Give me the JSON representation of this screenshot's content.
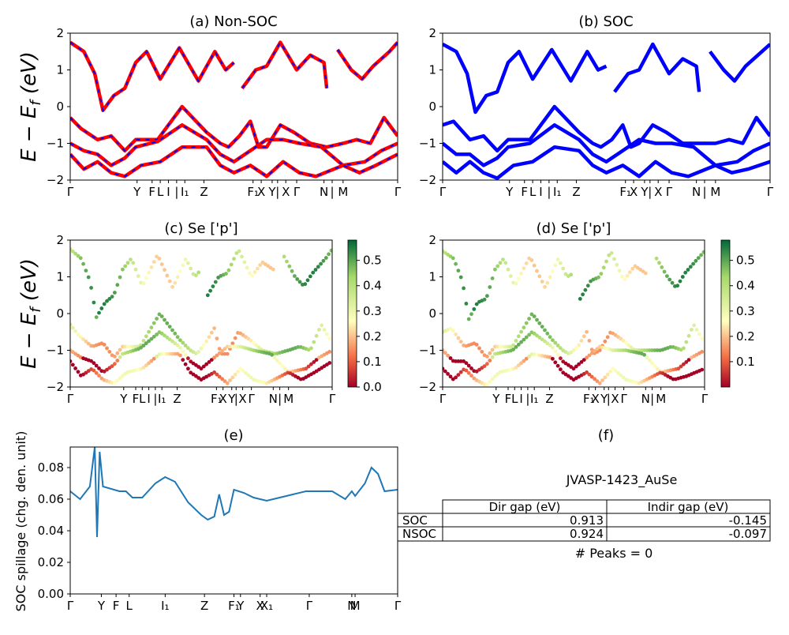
{
  "colors": {
    "red": "#ff0000",
    "blue": "#0000ff",
    "line": "#1f77b4"
  },
  "chart_data": [
    {
      "id": "a",
      "type": "line",
      "title": "(a) Non-SOC",
      "ylabel": "E − E_f (eV)",
      "ylim": [
        -2,
        2
      ],
      "yticks": [
        "2",
        "1",
        "0",
        "−1",
        "−2"
      ],
      "xticks": [
        "Γ",
        "Y",
        "F",
        "L",
        "I",
        "|",
        "I₁",
        "Z",
        "F₁",
        "X",
        "Y",
        "|",
        "X",
        "Γ",
        "N",
        "|",
        "M",
        "Γ"
      ],
      "series": [
        {
          "values": [
            [
              0,
              1.75
            ],
            [
              0.05,
              1.5
            ],
            [
              0.09,
              0.9
            ],
            [
              0.12,
              -0.1
            ],
            [
              0.16,
              0.3
            ],
            [
              0.2,
              0.5
            ],
            [
              0.24,
              1.2
            ],
            [
              0.28,
              1.5
            ],
            [
              0.33,
              0.75
            ],
            [
              0.4,
              1.6
            ],
            [
              0.47,
              0.7
            ],
            [
              0.53,
              1.5
            ],
            [
              0.57,
              1.0
            ],
            [
              0.6,
              1.2
            ]
          ]
        },
        {
          "values": [
            [
              0.63,
              0.5
            ],
            [
              0.68,
              1.0
            ],
            [
              0.72,
              1.1
            ],
            [
              0.77,
              1.75
            ],
            [
              0.83,
              1.0
            ],
            [
              0.88,
              1.4
            ],
            [
              0.93,
              1.2
            ],
            [
              0.94,
              0.5
            ]
          ]
        },
        {
          "values": [
            [
              0.98,
              1.55
            ],
            [
              1.03,
              1.0
            ],
            [
              1.07,
              0.75
            ],
            [
              1.11,
              1.1
            ],
            [
              1.17,
              1.5
            ],
            [
              1.2,
              1.75
            ]
          ]
        },
        {
          "values": [
            [
              0,
              -0.3
            ],
            [
              0.04,
              -0.6
            ],
            [
              0.1,
              -0.9
            ],
            [
              0.15,
              -0.8
            ],
            [
              0.2,
              -1.2
            ],
            [
              0.24,
              -0.9
            ],
            [
              0.32,
              -0.9
            ],
            [
              0.41,
              0.0
            ],
            [
              0.5,
              -0.7
            ],
            [
              0.55,
              -1.0
            ],
            [
              0.58,
              -1.1
            ],
            [
              0.62,
              -0.8
            ],
            [
              0.66,
              -0.4
            ],
            [
              0.69,
              -1.1
            ],
            [
              0.72,
              -1.1
            ],
            [
              0.77,
              -0.5
            ],
            [
              0.82,
              -0.7
            ],
            [
              0.88,
              -1.0
            ],
            [
              0.94,
              -1.1
            ],
            [
              1.0,
              -1.0
            ],
            [
              1.05,
              -0.9
            ],
            [
              1.1,
              -1.0
            ],
            [
              1.15,
              -0.3
            ],
            [
              1.2,
              -0.8
            ]
          ]
        },
        {
          "values": [
            [
              0,
              -1.0
            ],
            [
              0.05,
              -1.2
            ],
            [
              0.1,
              -1.3
            ],
            [
              0.15,
              -1.6
            ],
            [
              0.2,
              -1.4
            ],
            [
              0.24,
              -1.1
            ],
            [
              0.32,
              -0.95
            ],
            [
              0.41,
              -0.5
            ],
            [
              0.5,
              -0.9
            ],
            [
              0.55,
              -1.3
            ],
            [
              0.6,
              -1.5
            ],
            [
              0.66,
              -1.2
            ],
            [
              0.72,
              -0.9
            ],
            [
              0.78,
              -0.9
            ],
            [
              0.84,
              -1.0
            ],
            [
              0.92,
              -1.1
            ],
            [
              1.0,
              -1.6
            ],
            [
              1.08,
              -1.5
            ],
            [
              1.14,
              -1.2
            ],
            [
              1.2,
              -1.0
            ]
          ]
        },
        {
          "values": [
            [
              0,
              -1.3
            ],
            [
              0.05,
              -1.7
            ],
            [
              0.1,
              -1.5
            ],
            [
              0.15,
              -1.8
            ],
            [
              0.2,
              -1.9
            ],
            [
              0.26,
              -1.6
            ],
            [
              0.33,
              -1.5
            ],
            [
              0.41,
              -1.1
            ],
            [
              0.5,
              -1.1
            ],
            [
              0.55,
              -1.6
            ],
            [
              0.6,
              -1.8
            ],
            [
              0.66,
              -1.6
            ],
            [
              0.72,
              -1.9
            ],
            [
              0.78,
              -1.5
            ],
            [
              0.84,
              -1.8
            ],
            [
              0.9,
              -1.9
            ],
            [
              1.0,
              -1.6
            ],
            [
              1.06,
              -1.8
            ],
            [
              1.12,
              -1.6
            ],
            [
              1.2,
              -1.3
            ]
          ]
        }
      ]
    },
    {
      "id": "b",
      "type": "line",
      "title": "(b) SOC",
      "ylim": [
        -2,
        2
      ],
      "yticks": [
        "2",
        "1",
        "0",
        "−1",
        "−2"
      ],
      "xticks": [
        "Γ",
        "Y",
        "F",
        "L",
        "I",
        "|",
        "I₁",
        "Z",
        "F₁",
        "X",
        "Y",
        "|",
        "X",
        "Γ",
        "N",
        "|",
        "M",
        "Γ"
      ],
      "series": [
        {
          "values": [
            [
              0,
              1.7
            ],
            [
              0.05,
              1.5
            ],
            [
              0.09,
              0.9
            ],
            [
              0.12,
              -0.15
            ],
            [
              0.16,
              0.3
            ],
            [
              0.2,
              0.4
            ],
            [
              0.24,
              1.2
            ],
            [
              0.28,
              1.5
            ],
            [
              0.33,
              0.75
            ],
            [
              0.4,
              1.55
            ],
            [
              0.47,
              0.7
            ],
            [
              0.53,
              1.5
            ],
            [
              0.57,
              1.0
            ],
            [
              0.6,
              1.1
            ]
          ]
        },
        {
          "values": [
            [
              0.63,
              0.4
            ],
            [
              0.68,
              0.9
            ],
            [
              0.72,
              1.0
            ],
            [
              0.77,
              1.7
            ],
            [
              0.83,
              0.9
            ],
            [
              0.88,
              1.3
            ],
            [
              0.93,
              1.1
            ],
            [
              0.94,
              0.4
            ]
          ]
        },
        {
          "values": [
            [
              0.98,
              1.5
            ],
            [
              1.03,
              1.0
            ],
            [
              1.07,
              0.7
            ],
            [
              1.11,
              1.1
            ],
            [
              1.17,
              1.5
            ],
            [
              1.2,
              1.7
            ]
          ]
        },
        {
          "values": [
            [
              0,
              -0.5
            ],
            [
              0.04,
              -0.4
            ],
            [
              0.1,
              -0.9
            ],
            [
              0.15,
              -0.8
            ],
            [
              0.2,
              -1.2
            ],
            [
              0.24,
              -0.9
            ],
            [
              0.32,
              -0.9
            ],
            [
              0.41,
              0.0
            ],
            [
              0.5,
              -0.7
            ],
            [
              0.55,
              -1.0
            ],
            [
              0.58,
              -1.1
            ],
            [
              0.62,
              -0.9
            ],
            [
              0.66,
              -0.5
            ],
            [
              0.69,
              -1.1
            ],
            [
              0.72,
              -1.0
            ],
            [
              0.77,
              -0.5
            ],
            [
              0.82,
              -0.7
            ],
            [
              0.88,
              -1.0
            ],
            [
              0.94,
              -1.0
            ],
            [
              1.0,
              -1.0
            ],
            [
              1.05,
              -0.9
            ],
            [
              1.1,
              -1.0
            ],
            [
              1.15,
              -0.3
            ],
            [
              1.2,
              -0.8
            ]
          ]
        },
        {
          "values": [
            [
              0,
              -1.0
            ],
            [
              0.05,
              -1.3
            ],
            [
              0.1,
              -1.3
            ],
            [
              0.15,
              -1.6
            ],
            [
              0.2,
              -1.4
            ],
            [
              0.24,
              -1.1
            ],
            [
              0.32,
              -1.0
            ],
            [
              0.41,
              -0.5
            ],
            [
              0.5,
              -0.9
            ],
            [
              0.55,
              -1.3
            ],
            [
              0.6,
              -1.5
            ],
            [
              0.66,
              -1.2
            ],
            [
              0.72,
              -0.9
            ],
            [
              0.78,
              -1.0
            ],
            [
              0.84,
              -1.0
            ],
            [
              0.92,
              -1.1
            ],
            [
              1.0,
              -1.6
            ],
            [
              1.08,
              -1.5
            ],
            [
              1.14,
              -1.2
            ],
            [
              1.2,
              -1.0
            ]
          ]
        },
        {
          "values": [
            [
              0,
              -1.5
            ],
            [
              0.05,
              -1.8
            ],
            [
              0.1,
              -1.5
            ],
            [
              0.15,
              -1.8
            ],
            [
              0.2,
              -1.95
            ],
            [
              0.26,
              -1.6
            ],
            [
              0.33,
              -1.5
            ],
            [
              0.41,
              -1.1
            ],
            [
              0.5,
              -1.2
            ],
            [
              0.55,
              -1.6
            ],
            [
              0.6,
              -1.8
            ],
            [
              0.66,
              -1.6
            ],
            [
              0.72,
              -1.9
            ],
            [
              0.78,
              -1.5
            ],
            [
              0.84,
              -1.8
            ],
            [
              0.9,
              -1.9
            ],
            [
              1.0,
              -1.6
            ],
            [
              1.06,
              -1.8
            ],
            [
              1.12,
              -1.7
            ],
            [
              1.2,
              -1.5
            ]
          ]
        }
      ]
    },
    {
      "id": "c",
      "type": "scatter",
      "title": "(c)  Se ['p']",
      "ylabel": "E − E_f (eV)",
      "ylim": [
        -2,
        2
      ],
      "yticks": [
        "2",
        "1",
        "0",
        "−1",
        "−2"
      ],
      "xticks": [
        "Γ",
        "Y",
        "F",
        "L",
        "I",
        "|",
        "I₁",
        "Z",
        "F₁",
        "X",
        "Y",
        "|",
        "X",
        "Γ",
        "N",
        "|",
        "M",
        "Γ"
      ],
      "colorbar": {
        "range": [
          0,
          0.58
        ],
        "ticks": [
          "0.5",
          "0.4",
          "0.3",
          "0.2",
          "0.1",
          "0.0"
        ]
      }
    },
    {
      "id": "d",
      "type": "scatter",
      "title": "(d) Se ['p']",
      "ylim": [
        -2,
        2
      ],
      "yticks": [
        "2",
        "1",
        "0",
        "−1",
        "−2"
      ],
      "xticks": [
        "Γ",
        "Y",
        "F",
        "L",
        "I",
        "|",
        "I₁",
        "Z",
        "F₁",
        "X",
        "Y",
        "|",
        "X",
        "Γ",
        "N",
        "|",
        "M",
        "Γ"
      ],
      "colorbar": {
        "range": [
          0,
          0.58
        ],
        "ticks": [
          "0.5",
          "0.4",
          "0.3",
          "0.2",
          "0.1"
        ]
      }
    },
    {
      "id": "e",
      "type": "line",
      "title": "(e)",
      "ylabel": "SOC spillage (chg. den. unit)",
      "ylim": [
        0,
        0.093
      ],
      "yticks": [
        "0.08",
        "0.06",
        "0.04",
        "0.02",
        "0.00"
      ],
      "xticks": [
        "Γ",
        "Y",
        "F",
        "L",
        "I₁",
        "Z",
        "F₁",
        "Y",
        "X",
        "X₁",
        "Γ",
        "N",
        "M",
        "Γ"
      ],
      "values": [
        [
          0,
          0.065
        ],
        [
          0.03,
          0.06
        ],
        [
          0.06,
          0.068
        ],
        [
          0.075,
          0.093
        ],
        [
          0.082,
          0.036
        ],
        [
          0.09,
          0.09
        ],
        [
          0.1,
          0.068
        ],
        [
          0.15,
          0.065
        ],
        [
          0.17,
          0.065
        ],
        [
          0.19,
          0.061
        ],
        [
          0.22,
          0.061
        ],
        [
          0.26,
          0.07
        ],
        [
          0.29,
          0.074
        ],
        [
          0.32,
          0.071
        ],
        [
          0.36,
          0.058
        ],
        [
          0.4,
          0.05
        ],
        [
          0.42,
          0.047
        ],
        [
          0.44,
          0.049
        ],
        [
          0.455,
          0.063
        ],
        [
          0.47,
          0.05
        ],
        [
          0.485,
          0.052
        ],
        [
          0.5,
          0.066
        ],
        [
          0.53,
          0.064
        ],
        [
          0.56,
          0.061
        ],
        [
          0.6,
          0.059
        ],
        [
          0.66,
          0.062
        ],
        [
          0.72,
          0.065
        ],
        [
          0.8,
          0.065
        ],
        [
          0.84,
          0.06
        ],
        [
          0.86,
          0.065
        ],
        [
          0.87,
          0.062
        ],
        [
          0.9,
          0.07
        ],
        [
          0.92,
          0.08
        ],
        [
          0.94,
          0.076
        ],
        [
          0.96,
          0.065
        ],
        [
          1.0,
          0.066
        ]
      ]
    }
  ],
  "panel_f": {
    "title": "(f)",
    "material": "JVASP-1423_AuSe",
    "headers": [
      "Dir gap (eV)",
      "Indir gap (eV)"
    ],
    "rows": [
      {
        "label": "SOC",
        "dir": "0.913",
        "indir": "-0.145"
      },
      {
        "label": "NSOC",
        "dir": "0.924",
        "indir": "-0.097"
      }
    ],
    "peaks": "# Peaks = 0"
  }
}
